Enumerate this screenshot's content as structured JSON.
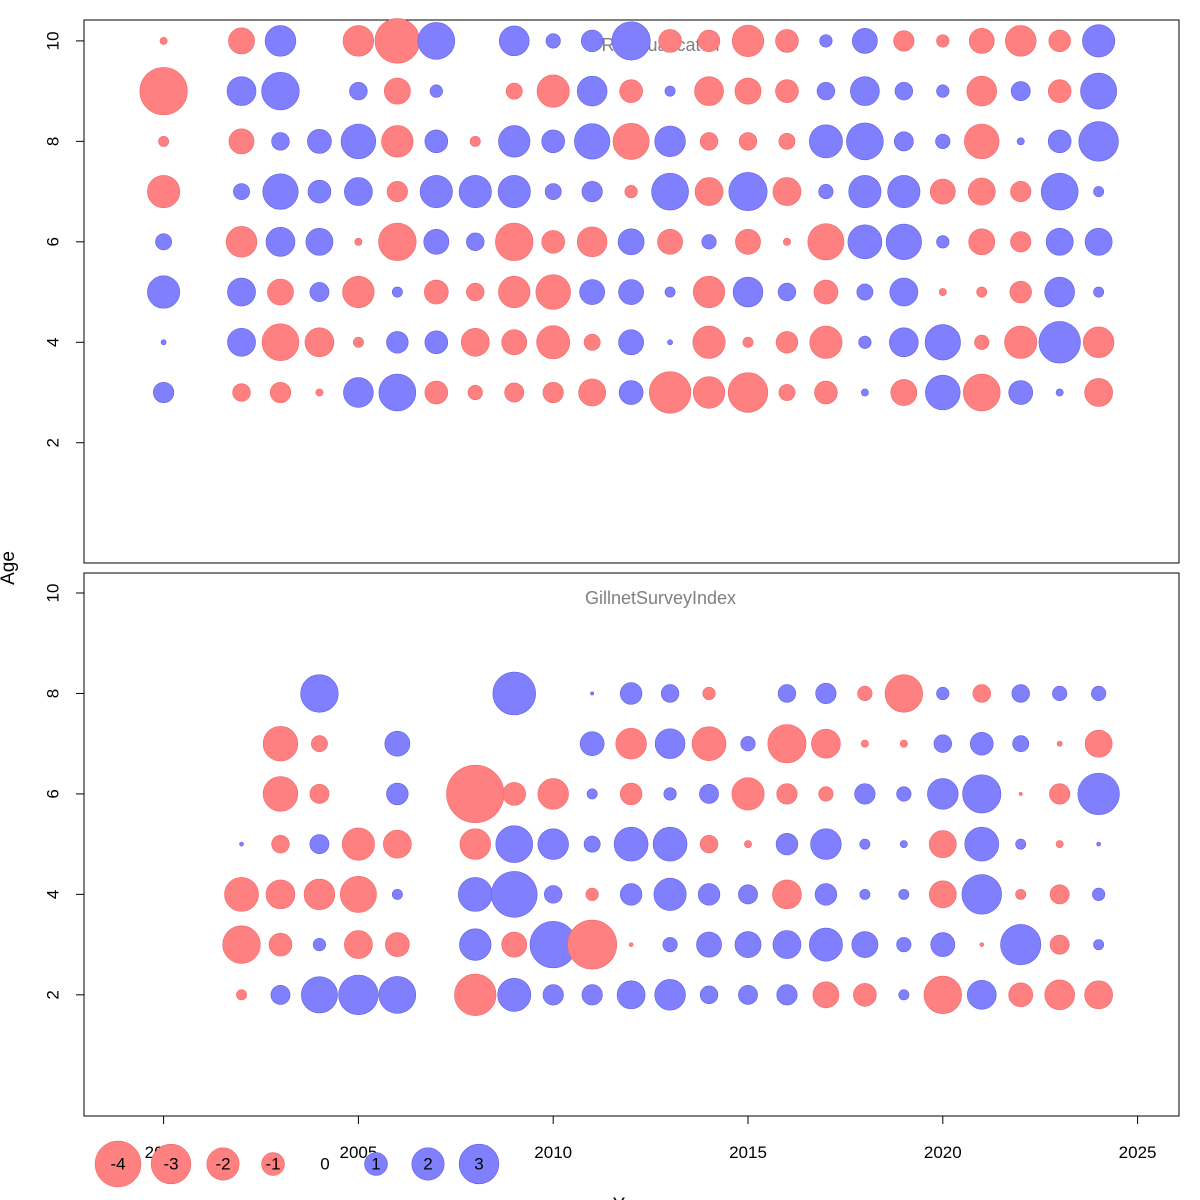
{
  "chart_data": {
    "type": "scatter",
    "subtype": "bubble",
    "ylabel": "Age",
    "xlabel": "Y",
    "xlim": [
      1998,
      2025
    ],
    "ylim": [
      1,
      11
    ],
    "x_ticks": [
      2000,
      2005,
      2010,
      2015,
      2020,
      2025
    ],
    "y_ticks": [
      2,
      4,
      6,
      8,
      10
    ],
    "colors": {
      "positive": "#8080ff",
      "negative": "#ff8080"
    },
    "legend": {
      "placement": "bottom-left",
      "entries": [
        {
          "label": "-4",
          "value": -4
        },
        {
          "label": "-3",
          "value": -3
        },
        {
          "label": "-2",
          "value": -2
        },
        {
          "label": "-1",
          "value": -1
        },
        {
          "label": "0",
          "value": 0
        },
        {
          "label": "1",
          "value": 1
        },
        {
          "label": "2",
          "value": 2
        },
        {
          "label": "3",
          "value": 3
        }
      ]
    },
    "panels": [
      {
        "title": "Residual catch",
        "years": [
          2000,
          2002,
          2003,
          2004,
          2005,
          2006,
          2007,
          2008,
          2009,
          2010,
          2011,
          2012,
          2013,
          2014,
          2015,
          2016,
          2017,
          2018,
          2019,
          2020,
          2021,
          2022,
          2023,
          2024
        ],
        "ages": [
          10,
          9,
          8,
          7,
          6,
          5,
          4,
          3
        ],
        "residuals": [
          [
            -0.1,
            -1.3,
            1.8,
            null,
            -1.8,
            -3.8,
            2.6,
            null,
            1.7,
            0.4,
            0.9,
            2.8,
            -1.0,
            -0.9,
            -1.9,
            -1.0,
            0.3,
            1.2,
            -0.8,
            -0.3,
            -1.2,
            -1.8,
            -0.9,
            2.0
          ],
          [
            -4.3,
            1.6,
            2.7,
            null,
            0.6,
            -1.3,
            0.3,
            null,
            -0.5,
            -2.0,
            1.7,
            -1.0,
            0.2,
            -1.6,
            -1.3,
            -1.0,
            0.6,
            1.6,
            0.6,
            0.3,
            -1.7,
            0.7,
            -1.0,
            2.5
          ],
          [
            -0.2,
            -1.2,
            0.6,
            1.1,
            2.3,
            -1.9,
            1.0,
            -0.2,
            1.9,
            1.0,
            2.4,
            -2.5,
            1.8,
            -0.6,
            -0.6,
            -0.5,
            2.1,
            2.6,
            0.7,
            0.4,
            -2.3,
            0.1,
            1.0,
            3.0
          ],
          [
            -2.0,
            0.5,
            2.4,
            1.0,
            1.5,
            -0.8,
            2.0,
            2.0,
            2.0,
            0.5,
            0.8,
            -0.3,
            2.6,
            -1.5,
            2.8,
            -1.5,
            0.4,
            2.0,
            2.0,
            -1.2,
            -1.4,
            -0.8,
            2.6,
            0.2
          ],
          [
            0.5,
            -1.8,
            1.6,
            1.4,
            -0.1,
            -2.7,
            1.2,
            0.6,
            -2.7,
            -1.0,
            -1.7,
            1.3,
            -1.2,
            0.4,
            -1.2,
            -0.1,
            -2.5,
            2.2,
            2.4,
            0.3,
            -1.3,
            -0.8,
            1.4,
            1.4
          ],
          [
            2.0,
            1.5,
            -1.3,
            0.7,
            -1.9,
            0.2,
            -1.1,
            -0.6,
            -1.9,
            -2.3,
            1.2,
            1.2,
            0.2,
            -1.9,
            1.7,
            0.6,
            -1.1,
            0.5,
            1.5,
            -0.1,
            -0.2,
            -0.9,
            1.7,
            0.2
          ],
          [
            0.05,
            1.5,
            -2.6,
            -1.6,
            -0.2,
            0.9,
            1.0,
            -1.5,
            -1.2,
            -2.1,
            -0.5,
            1.2,
            0.05,
            -2.0,
            -0.2,
            -0.9,
            -2.0,
            0.3,
            1.6,
            2.4,
            -0.4,
            -2.0,
            3.3,
            -1.8
          ],
          [
            0.8,
            -0.6,
            -0.8,
            -0.1,
            1.7,
            2.6,
            -1.0,
            -0.4,
            -0.7,
            -0.8,
            -1.4,
            1.1,
            -3.3,
            -1.9,
            -3.0,
            -0.5,
            -1.0,
            0.1,
            -1.3,
            2.3,
            -2.6,
            1.1,
            0.1,
            -1.5
          ]
        ]
      },
      {
        "title": "GillnetSurveyIndex",
        "years": [
          2002,
          2003,
          2004,
          2005,
          2006,
          2008,
          2009,
          2010,
          2011,
          2012,
          2013,
          2014,
          2015,
          2016,
          2017,
          2018,
          2019,
          2020,
          2021,
          2022,
          2023,
          2024
        ],
        "ages": [
          8,
          7,
          6,
          5,
          4,
          3,
          2
        ],
        "residuals": [
          [
            null,
            null,
            2.7,
            null,
            null,
            null,
            3.5,
            null,
            0.02,
            0.9,
            0.6,
            -0.3,
            null,
            0.6,
            0.8,
            -0.4,
            -2.7,
            0.3,
            -0.6,
            0.6,
            0.4,
            0.4
          ],
          [
            null,
            -2.3,
            -0.5,
            null,
            1.2,
            null,
            null,
            null,
            1.1,
            -1.8,
            1.7,
            -2.2,
            0.4,
            -2.8,
            -1.6,
            -0.1,
            -0.1,
            0.6,
            1.0,
            0.5,
            -0.05,
            -1.4
          ],
          [
            null,
            -2.3,
            -0.7,
            null,
            0.9,
            -6.3,
            -1.0,
            -1.8,
            0.2,
            -0.9,
            0.3,
            0.7,
            -2.0,
            -0.8,
            -0.4,
            0.8,
            0.4,
            1.8,
            2.8,
            -0.02,
            -0.8,
            3.3
          ],
          [
            0.03,
            -0.6,
            0.7,
            -2.0,
            -1.5,
            -1.8,
            2.6,
            1.8,
            0.5,
            2.2,
            2.2,
            -0.6,
            -0.1,
            0.9,
            1.8,
            0.2,
            0.1,
            -1.4,
            2.2,
            0.2,
            -0.1,
            0.03
          ],
          [
            -2.2,
            -1.6,
            -1.8,
            -2.5,
            0.2,
            2.2,
            4.0,
            0.6,
            -0.3,
            0.9,
            2.0,
            0.9,
            0.7,
            -1.6,
            0.9,
            0.2,
            0.2,
            -1.4,
            3.0,
            -0.2,
            -0.7,
            0.3
          ],
          [
            -2.7,
            -1.0,
            0.3,
            -1.5,
            -1.1,
            1.9,
            -1.2,
            4.1,
            -4.6,
            -0.03,
            0.4,
            1.2,
            1.3,
            1.5,
            2.1,
            1.3,
            0.4,
            1.1,
            -0.03,
            3.1,
            -0.7,
            0.2
          ],
          [
            -0.2,
            0.7,
            2.5,
            3.0,
            2.6,
            -3.3,
            2.1,
            0.8,
            0.8,
            1.5,
            1.8,
            0.6,
            0.7,
            0.8,
            -1.3,
            -1.0,
            0.2,
            -2.7,
            1.6,
            -1.1,
            -1.7,
            -1.5
          ]
        ]
      }
    ]
  }
}
